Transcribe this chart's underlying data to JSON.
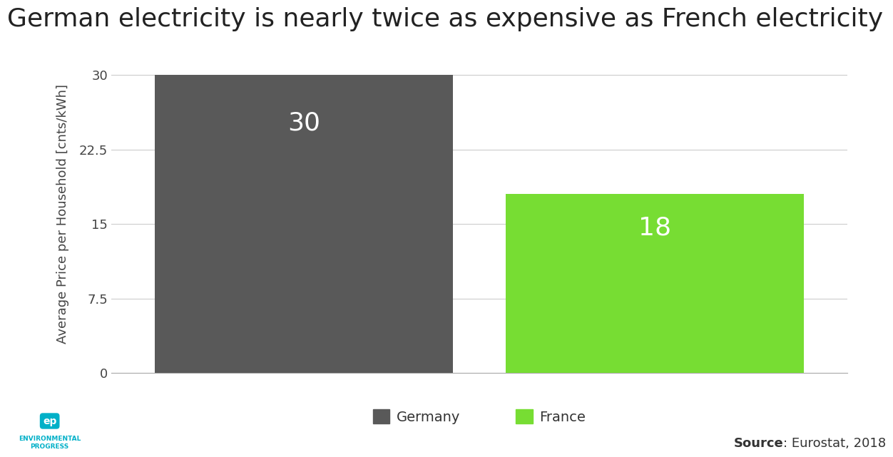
{
  "title": "German electricity is nearly twice as expensive as French electricity",
  "categories": [
    "Germany",
    "France"
  ],
  "values": [
    30,
    18
  ],
  "bar_colors": [
    "#595959",
    "#77dd33"
  ],
  "ylabel": "Average Price per Household [cnts/kWh]",
  "yticks": [
    0,
    7.5,
    15,
    22.5,
    30
  ],
  "ylim": [
    0,
    32
  ],
  "bar_labels": [
    "30",
    "18"
  ],
  "bar_label_color": "#ffffff",
  "bar_label_fontsize": 26,
  "title_fontsize": 26,
  "ylabel_fontsize": 13,
  "tick_fontsize": 13,
  "legend_fontsize": 14,
  "source_text_bold": "Source",
  "source_text_normal": ": Eurostat, 2018",
  "source_fontsize": 13,
  "background_color": "#ffffff",
  "grid_color": "#cccccc",
  "axis_color": "#aaaaaa"
}
